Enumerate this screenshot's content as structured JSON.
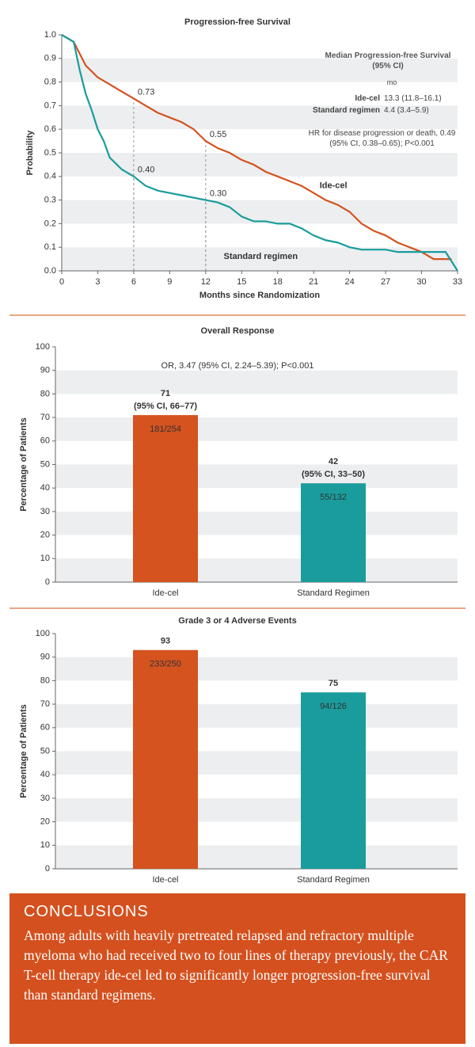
{
  "chart_data": [
    {
      "type": "line",
      "title": "Progression-free Survival",
      "xlabel": "Months since Randomization",
      "ylabel": "Probability",
      "xlim": [
        0,
        33
      ],
      "xticks": [
        0,
        3,
        6,
        9,
        12,
        15,
        18,
        21,
        24,
        27,
        30,
        33
      ],
      "ylim": [
        0,
        1
      ],
      "yticks": [
        {
          "value": 0,
          "label": "0.0"
        },
        0.1,
        0.2,
        0.3,
        0.4,
        0.5,
        0.6,
        0.7,
        0.8,
        0.9,
        {
          "value": 1,
          "label": "1.0"
        }
      ],
      "series": [
        {
          "name": "Ide-cel",
          "color": "#d4531f",
          "x": [
            0,
            1,
            1.5,
            2,
            3,
            4,
            5,
            6,
            7,
            8,
            9,
            10,
            11,
            12,
            13,
            14,
            15,
            16,
            17,
            18,
            19,
            20,
            21,
            22,
            23,
            24,
            25,
            26,
            27,
            28,
            29,
            30,
            31,
            32,
            32.5
          ],
          "values": [
            1.0,
            0.97,
            0.92,
            0.87,
            0.82,
            0.79,
            0.76,
            0.73,
            0.7,
            0.67,
            0.65,
            0.63,
            0.6,
            0.55,
            0.52,
            0.5,
            0.47,
            0.45,
            0.42,
            0.4,
            0.38,
            0.36,
            0.33,
            0.3,
            0.28,
            0.25,
            0.2,
            0.17,
            0.15,
            0.12,
            0.1,
            0.08,
            0.05,
            0.05,
            0.05
          ]
        },
        {
          "name": "Standard regimen",
          "color": "#1a9c9c",
          "x": [
            0,
            1,
            1.5,
            2,
            2.5,
            3,
            3.5,
            4,
            5,
            6,
            7,
            8,
            9,
            10,
            11,
            12,
            13,
            14,
            15,
            16,
            17,
            18,
            19,
            20,
            21,
            22,
            23,
            24,
            25,
            26,
            27,
            28,
            29,
            30,
            31,
            32,
            33
          ],
          "values": [
            1.0,
            0.97,
            0.85,
            0.75,
            0.68,
            0.6,
            0.55,
            0.48,
            0.43,
            0.4,
            0.36,
            0.34,
            0.33,
            0.32,
            0.31,
            0.3,
            0.29,
            0.27,
            0.23,
            0.21,
            0.21,
            0.2,
            0.2,
            0.18,
            0.15,
            0.13,
            0.12,
            0.1,
            0.09,
            0.09,
            0.09,
            0.08,
            0.08,
            0.08,
            0.08,
            0.08,
            0.0
          ]
        }
      ],
      "annotations": [
        {
          "x": 6,
          "value": 0.73,
          "label": "0.73"
        },
        {
          "x": 12,
          "value": 0.55,
          "label": "0.55"
        },
        {
          "x": 6,
          "value": 0.4,
          "label": "0.40"
        },
        {
          "x": 12,
          "value": 0.3,
          "label": "0.30"
        }
      ],
      "median_box": {
        "title": "Median Progression-free Survival (95% CI)",
        "unit": "mo",
        "rows": [
          "13.3 (11.8–16.1)",
          "4.4 (3.4–5.9)"
        ]
      },
      "hr_note": "HR for disease progression or death, 0.49 (95% CI, 0.38–0.65); P<0.001"
    },
    {
      "type": "bar",
      "title": "Overall Response",
      "ylabel": "Percentage of Patients",
      "categories": [
        "Ide-cel",
        "Standard Regimen"
      ],
      "values": [
        71,
        42
      ],
      "colors": [
        "#d4531f",
        "#1a9c9c"
      ],
      "ci_labels": [
        "(95% CI, 66–77)",
        "(95% CI, 33–50)"
      ],
      "count_labels": [
        "181/254",
        "55/132"
      ],
      "annotation": "OR, 3.47 (95% CI, 2.24–5.39); P<0.001",
      "ylim": [
        0,
        100
      ],
      "yticks": [
        0,
        10,
        20,
        30,
        40,
        50,
        60,
        70,
        80,
        90,
        100
      ]
    },
    {
      "type": "bar",
      "title": "Grade 3 or 4 Adverse Events",
      "ylabel": "Percentage of Patients",
      "categories": [
        "Ide-cel",
        "Standard Regimen"
      ],
      "values": [
        93,
        75
      ],
      "colors": [
        "#d4531f",
        "#1a9c9c"
      ],
      "count_labels": [
        "233/250",
        "94/126"
      ],
      "ylim": [
        0,
        100
      ],
      "yticks": [
        0,
        10,
        20,
        30,
        40,
        50,
        60,
        70,
        80,
        90,
        100
      ]
    }
  ],
  "conclusions": {
    "heading": "CONCLUSIONS",
    "text": "Among adults with heavily pretreated relapsed and refractory multiple myeloma who had received two to four lines of therapy previously, the CAR T-cell therapy ide-cel led to significantly longer progression-free survival than standard regimens."
  }
}
